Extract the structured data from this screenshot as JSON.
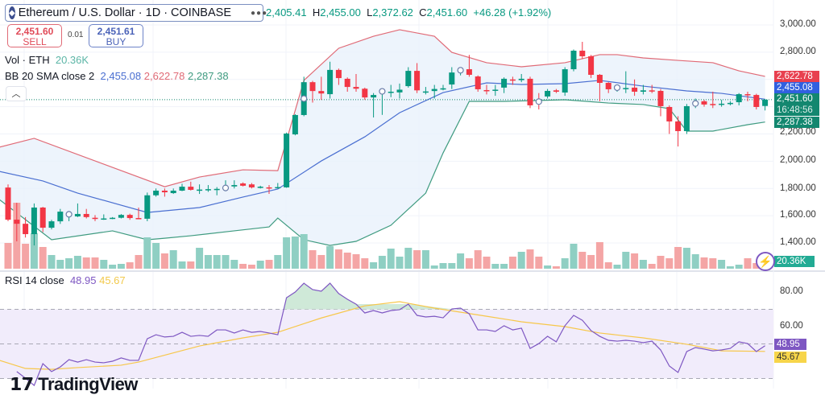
{
  "header": {
    "symbol": "Ethereum / U.S. Dollar · 1D · COINBASE",
    "icon": "ethereum-icon",
    "ohlc": {
      "o_label": "O",
      "o": "2,405.41",
      "h_label": "H",
      "h": "2,455.00",
      "l_label": "L",
      "l": "2,372.62",
      "c_label": "C",
      "c": "2,451.60",
      "change": "+46.28 (+1.92%)"
    }
  },
  "trade": {
    "sell_price": "2,451.60",
    "sell_label": "SELL",
    "spread": "0.01",
    "buy_price": "2,451.61",
    "buy_label": "BUY"
  },
  "indicators": {
    "vol": {
      "label": "Vol · ETH",
      "value": "20.36K"
    },
    "bb": {
      "label": "BB 20 SMA close 2",
      "basis": "2,455.08",
      "upper": "2,622.78",
      "lower": "2,287.38"
    },
    "rsi": {
      "label": "RSI 14 close",
      "value": "48.95",
      "ma": "45.67"
    }
  },
  "price_axis": {
    "ticks": [
      "3,000.00",
      "2,800.00",
      "2,200.00",
      "2,000.00",
      "1,800.00",
      "1,600.00",
      "1,400.00"
    ],
    "tag_upper": "2,622.78",
    "tag_basis": "2,455.08",
    "tag_last": "2,451.60",
    "countdown": "16:48:56",
    "tag_lower": "2,287.38",
    "tag_vol": "20.36K"
  },
  "rsi_axis": {
    "ticks": [
      "80.00",
      "60.00"
    ],
    "tag_rsi": "48.95",
    "tag_ma": "45.67"
  },
  "logo": "TradingView",
  "colors": {
    "up": "#089981",
    "down": "#f23645",
    "bb_upper": "#e06a76",
    "bb_basis": "#4a6fd1",
    "bb_lower": "#3f9b80",
    "rsi": "#7e57c2",
    "rsi_ma": "#f7c74a"
  },
  "chart_data": [
    {
      "type": "candlestick",
      "title": "Ethereum / U.S. Dollar · 1D · COINBASE",
      "ylim": [
        1300,
        3050
      ],
      "y_scale": "linear",
      "grid": true,
      "ohlc": [
        [
          1807,
          1830,
          1560,
          1571
        ],
        [
          1571,
          1695,
          1412,
          1541
        ],
        [
          1541,
          1590,
          1440,
          1465
        ],
        [
          1465,
          1690,
          1382,
          1660
        ],
        [
          1660,
          1665,
          1480,
          1512
        ],
        [
          1512,
          1570,
          1500,
          1559
        ],
        [
          1559,
          1650,
          1540,
          1630
        ],
        [
          1608,
          1625,
          1560,
          1613
        ],
        [
          1595,
          1690,
          1590,
          1613
        ],
        [
          1613,
          1650,
          1580,
          1590
        ],
        [
          1585,
          1605,
          1560,
          1578
        ],
        [
          1578,
          1610,
          1570,
          1580
        ],
        [
          1580,
          1590,
          1575,
          1585
        ],
        [
          1585,
          1612,
          1580,
          1606
        ],
        [
          1606,
          1615,
          1570,
          1583
        ],
        [
          1583,
          1660,
          1575,
          1578
        ],
        [
          1578,
          1770,
          1560,
          1750
        ],
        [
          1750,
          1800,
          1740,
          1784
        ],
        [
          1784,
          1800,
          1740,
          1772
        ],
        [
          1766,
          1800,
          1760,
          1784
        ],
        [
          1784,
          1835,
          1780,
          1813
        ],
        [
          1813,
          1850,
          1785,
          1790
        ],
        [
          1790,
          1830,
          1760,
          1792
        ],
        [
          1792,
          1825,
          1775,
          1795
        ],
        [
          1795,
          1810,
          1750,
          1797
        ],
        [
          1800,
          1860,
          1780,
          1808
        ],
        [
          1815,
          1860,
          1800,
          1825
        ],
        [
          1837,
          1845,
          1815,
          1820
        ],
        [
          1830,
          1840,
          1800,
          1808
        ],
        [
          1805,
          1820,
          1800,
          1813
        ],
        [
          1808,
          1825,
          1760,
          1806
        ],
        [
          1808,
          1840,
          1800,
          1810
        ],
        [
          1808,
          2210,
          1805,
          2203
        ],
        [
          2197,
          2345,
          2190,
          2339
        ],
        [
          2339,
          2620,
          2330,
          2580
        ],
        [
          2580,
          2590,
          2430,
          2515
        ],
        [
          2515,
          2620,
          2450,
          2497
        ],
        [
          2492,
          2730,
          2460,
          2670
        ],
        [
          2670,
          2680,
          2560,
          2610
        ],
        [
          2605,
          2615,
          2510,
          2545
        ],
        [
          2545,
          2640,
          2510,
          2532
        ],
        [
          2532,
          2540,
          2450,
          2468
        ],
        [
          2468,
          2500,
          2321,
          2486
        ],
        [
          2510,
          2520,
          2340,
          2515
        ],
        [
          2505,
          2560,
          2470,
          2510
        ],
        [
          2505,
          2570,
          2460,
          2525
        ],
        [
          2551,
          2690,
          2540,
          2663
        ],
        [
          2663,
          2720,
          2500,
          2520
        ],
        [
          2510,
          2545,
          2490,
          2512
        ],
        [
          2515,
          2560,
          2460,
          2530
        ],
        [
          2530,
          2560,
          2520,
          2535
        ],
        [
          2563,
          2690,
          2530,
          2651
        ],
        [
          2665,
          2680,
          2630,
          2670
        ],
        [
          2675,
          2780,
          2620,
          2634
        ],
        [
          2622,
          2630,
          2510,
          2528
        ],
        [
          2522,
          2560,
          2490,
          2520
        ],
        [
          2520,
          2560,
          2480,
          2525
        ],
        [
          2540,
          2615,
          2500,
          2605
        ],
        [
          2600,
          2620,
          2560,
          2595
        ],
        [
          2595,
          2640,
          2580,
          2605
        ],
        [
          2605,
          2620,
          2390,
          2410
        ],
        [
          2440,
          2500,
          2380,
          2435
        ],
        [
          2475,
          2530,
          2460,
          2516
        ],
        [
          2520,
          2530,
          2500,
          2510
        ],
        [
          2504,
          2690,
          2480,
          2675
        ],
        [
          2675,
          2820,
          2660,
          2811
        ],
        [
          2811,
          2876,
          2750,
          2770
        ],
        [
          2770,
          2780,
          2610,
          2634
        ],
        [
          2634,
          2640,
          2440,
          2575
        ],
        [
          2575,
          2580,
          2500,
          2528
        ],
        [
          2540,
          2560,
          2510,
          2540
        ],
        [
          2535,
          2660,
          2500,
          2537
        ],
        [
          2540,
          2600,
          2480,
          2510
        ],
        [
          2510,
          2560,
          2490,
          2520
        ],
        [
          2520,
          2560,
          2500,
          2518
        ],
        [
          2516,
          2530,
          2330,
          2404
        ],
        [
          2398,
          2410,
          2200,
          2292
        ],
        [
          2292,
          2330,
          2108,
          2221
        ],
        [
          2221,
          2420,
          2200,
          2404
        ],
        [
          2420,
          2460,
          2390,
          2427
        ],
        [
          2440,
          2450,
          2400,
          2416
        ],
        [
          2420,
          2510,
          2390,
          2418
        ],
        [
          2418,
          2450,
          2400,
          2422
        ],
        [
          2425,
          2440,
          2410,
          2428
        ],
        [
          2433,
          2500,
          2410,
          2492
        ],
        [
          2492,
          2510,
          2440,
          2486
        ],
        [
          2486,
          2495,
          2380,
          2398
        ],
        [
          2405.41,
          2455,
          2372.62,
          2451.6
        ]
      ],
      "event_markers": [
        7,
        25,
        34,
        43,
        52,
        61,
        70,
        79
      ],
      "volume_k": [
        64,
        164,
        62,
        88,
        54,
        34,
        22,
        26,
        32,
        28,
        28,
        22,
        10,
        12,
        16,
        34,
        78,
        64,
        38,
        46,
        18,
        18,
        52,
        34,
        34,
        34,
        22,
        12,
        10,
        20,
        22,
        34,
        78,
        80,
        86,
        46,
        34,
        56,
        48,
        40,
        36,
        26,
        16,
        32,
        50,
        30,
        52,
        46,
        46,
        8,
        14,
        14,
        38,
        26,
        46,
        30,
        12,
        12,
        30,
        42,
        48,
        30,
        8,
        6,
        26,
        62,
        42,
        34,
        66,
        16,
        10,
        42,
        38,
        22,
        12,
        32,
        26,
        54,
        52,
        36,
        28,
        26,
        22,
        6,
        10,
        26,
        14,
        20.36
      ],
      "bb_upper": [
        [
          -1,
          2103
        ],
        [
          3,
          2168
        ],
        [
          18,
          1813
        ],
        [
          22,
          1884
        ],
        [
          27,
          1937
        ],
        [
          31,
          1931
        ],
        [
          34,
          2593
        ],
        [
          38,
          2829
        ],
        [
          42,
          2917
        ],
        [
          45,
          2965
        ],
        [
          49,
          2917
        ],
        [
          51,
          2799
        ],
        [
          55,
          2723
        ],
        [
          59,
          2693
        ],
        [
          64,
          2723
        ],
        [
          68,
          2782
        ],
        [
          70,
          2782
        ],
        [
          73,
          2758
        ],
        [
          77,
          2740
        ],
        [
          81,
          2723
        ],
        [
          84,
          2663
        ],
        [
          87,
          2622.78
        ]
      ],
      "bb_basis": [
        [
          -1,
          1925
        ],
        [
          4,
          1855
        ],
        [
          8,
          1766
        ],
        [
          16,
          1624
        ],
        [
          22,
          1660
        ],
        [
          27,
          1737
        ],
        [
          31,
          1796
        ],
        [
          36,
          2002
        ],
        [
          41,
          2179
        ],
        [
          45,
          2356
        ],
        [
          50,
          2504
        ],
        [
          55,
          2575
        ],
        [
          59,
          2563
        ],
        [
          64,
          2569
        ],
        [
          68,
          2593
        ],
        [
          73,
          2551
        ],
        [
          78,
          2516
        ],
        [
          82,
          2498
        ],
        [
          87,
          2455.08
        ]
      ],
      "bb_lower": [
        [
          -1,
          1719
        ],
        [
          12,
          1489
        ],
        [
          5,
          1424
        ],
        [
          16,
          1424
        ],
        [
          18,
          1435
        ],
        [
          21,
          1453
        ],
        [
          26,
          1489
        ],
        [
          30,
          1518
        ],
        [
          31,
          1583
        ],
        [
          34,
          1424
        ],
        [
          37,
          1382
        ],
        [
          40,
          1412
        ],
        [
          44,
          1530
        ],
        [
          48,
          1766
        ],
        [
          50,
          2061
        ],
        [
          53,
          2439
        ],
        [
          57,
          2439
        ],
        [
          64,
          2451
        ],
        [
          69,
          2427
        ],
        [
          73,
          2416
        ],
        [
          76,
          2386
        ],
        [
          78,
          2221
        ],
        [
          81,
          2221
        ],
        [
          85,
          2268
        ],
        [
          87,
          2287.38
        ]
      ]
    },
    {
      "type": "line",
      "title": "RSI 14 close",
      "ylim": [
        25,
        90
      ],
      "bands": [
        30,
        50,
        70
      ],
      "series": [
        {
          "name": "RSI",
          "values": [
            34,
            30.2,
            26,
            38.6,
            34,
            36.7,
            40.9,
            39.5,
            40.9,
            39.5,
            39.1,
            40,
            41.9,
            40.5,
            40.5,
            53,
            55.3,
            54,
            54.4,
            56.7,
            54.4,
            54.9,
            54.4,
            58.1,
            58.1,
            56.3,
            58.1,
            56.7,
            57.2,
            56.3,
            55.3,
            76.7,
            80,
            85.1,
            81.4,
            80.5,
            85.1,
            79.1,
            75.8,
            73,
            67.9,
            69.3,
            67.9,
            69.3,
            69.8,
            73,
            66.5,
            65.6,
            66,
            65.1,
            70.2,
            70.7,
            67.4,
            58.1,
            58.1,
            57.2,
            60.5,
            58.1,
            59.1,
            47.4,
            50.2,
            54.4,
            51.2,
            60.5,
            66.5,
            63.7,
            57.7,
            54.4,
            52.1,
            51.6,
            52.1,
            51.6,
            50.7,
            51.6,
            46.5,
            37.2,
            33.5,
            45.6,
            47.9,
            47,
            46,
            46.5,
            47.4,
            51.2,
            50.2,
            45.6,
            48.95
          ]
        },
        {
          "name": "RSI MA",
          "points": [
            [
              -1,
              40.5
            ],
            [
              2,
              35.8
            ],
            [
              5,
              35.3
            ],
            [
              8,
              36.3
            ],
            [
              13,
              37.7
            ],
            [
              15,
              39.5
            ],
            [
              22,
              48.8
            ],
            [
              27,
              53.5
            ],
            [
              31,
              56.7
            ],
            [
              36,
              65
            ],
            [
              41,
              72
            ],
            [
              45,
              74.4
            ],
            [
              49,
              70.7
            ],
            [
              55,
              66
            ],
            [
              59,
              62.8
            ],
            [
              64,
              60
            ],
            [
              68,
              56.3
            ],
            [
              73,
              53.5
            ],
            [
              78,
              49.8
            ],
            [
              82,
              46
            ],
            [
              87,
              45.67
            ]
          ]
        }
      ]
    }
  ]
}
